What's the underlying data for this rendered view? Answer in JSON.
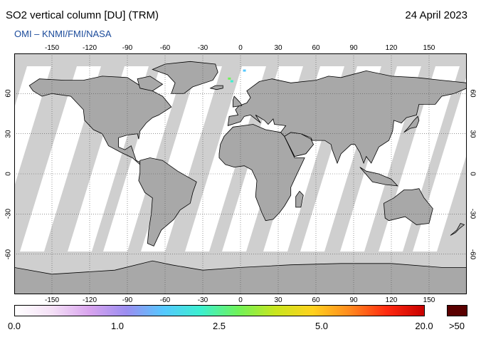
{
  "title": "SO2 vertical column [DU] (TRM)",
  "date": "24 April 2023",
  "source": "OMI  –  KNMI/FMI/NASA",
  "map": {
    "lon_ticks": [
      "-150",
      "-120",
      "-90",
      "-60",
      "-30",
      "0",
      "30",
      "60",
      "90",
      "120",
      "150"
    ],
    "lat_ticks": [
      "60",
      "30",
      "0",
      "-30",
      "-60"
    ],
    "lon_range": [
      -180,
      180
    ],
    "lat_range": [
      -90,
      90
    ],
    "colors": {
      "land_no_data": "#a8a8a8",
      "ocean_no_data": "#cfcfcf",
      "data_swath": "#ffffff",
      "coastline": "#000000",
      "grid": "#555555"
    }
  },
  "legend": {
    "labels": [
      "0.0",
      "1.0",
      "2.5",
      "5.0",
      "20.0"
    ],
    "over_label": ">50",
    "colors": [
      "#ffffff",
      "#f4e0f6",
      "#d9a4ee",
      "#9b8df0",
      "#55c8ff",
      "#3cf0cf",
      "#6ff25a",
      "#c8e61e",
      "#ffd21e",
      "#ff8a1e",
      "#ff2a10",
      "#c80000"
    ],
    "over_color": "#5a0000"
  }
}
